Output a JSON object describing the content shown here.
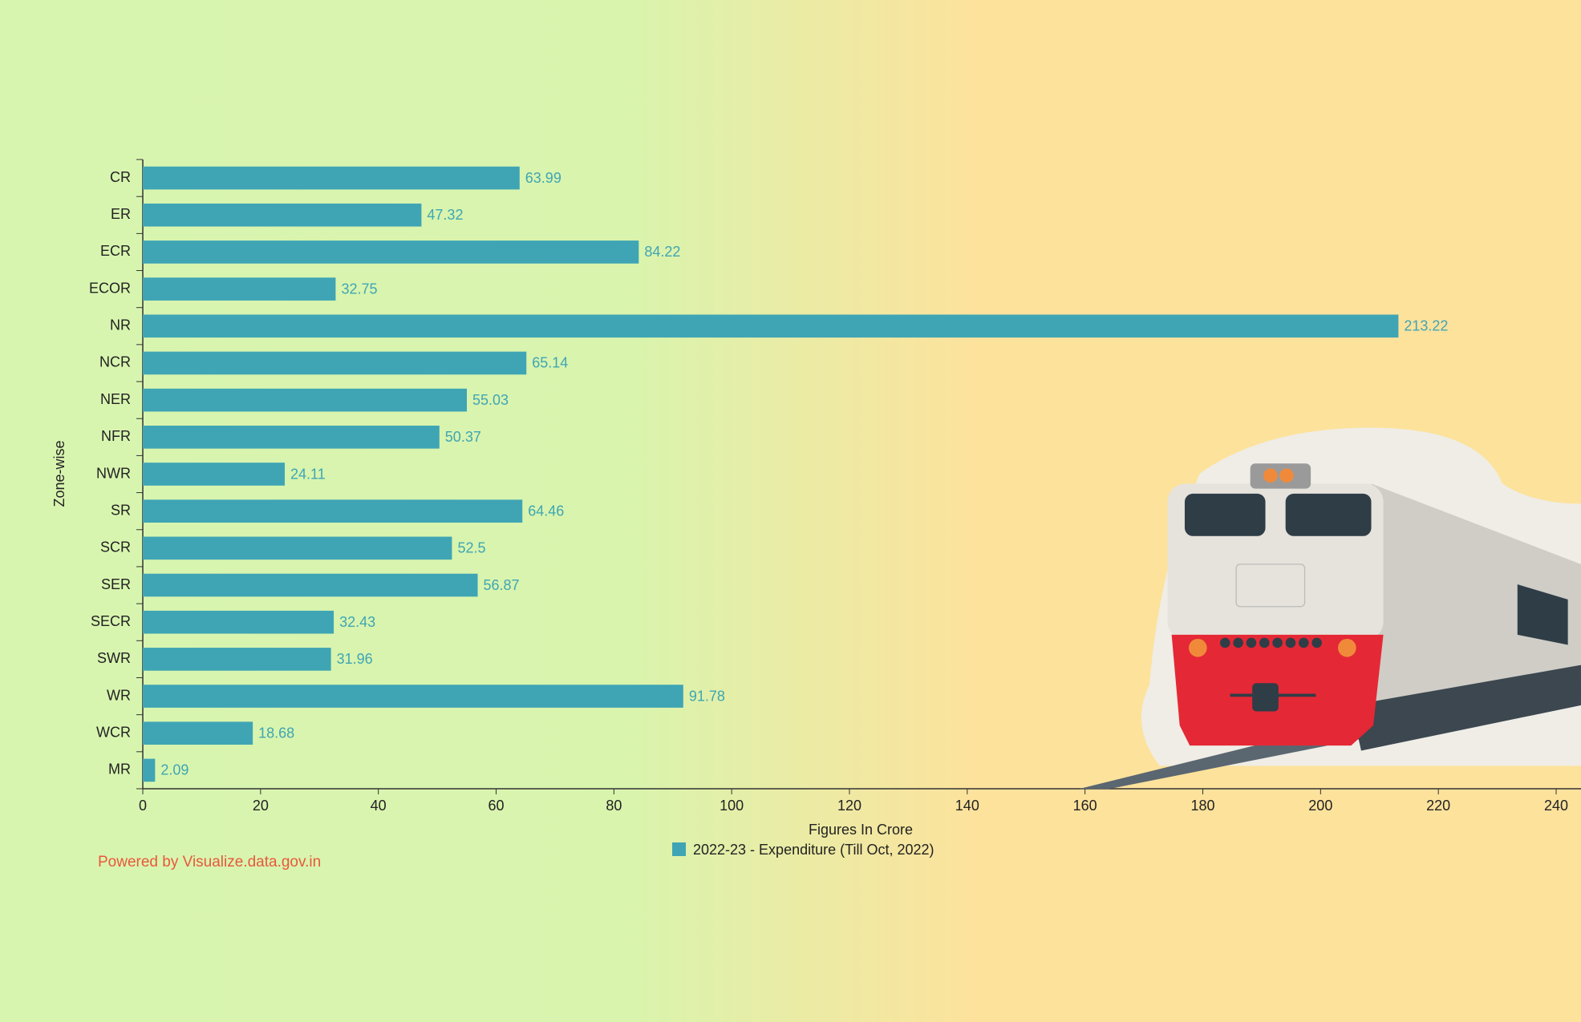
{
  "chart_data": {
    "type": "bar",
    "orientation": "horizontal",
    "y_label": "Zone-wise",
    "x_label": "Figures In Crore",
    "categories": [
      "CR",
      "ER",
      "ECR",
      "ECOR",
      "NR",
      "NCR",
      "NER",
      "NFR",
      "NWR",
      "SR",
      "SCR",
      "SER",
      "SECR",
      "SWR",
      "WR",
      "WCR",
      "MR"
    ],
    "series": [
      {
        "name": "2022-23 - Expenditure (Till Oct, 2022)",
        "color": "#3fa5b5",
        "values": [
          63.99,
          47.32,
          84.22,
          32.75,
          213.22,
          65.14,
          55.03,
          50.37,
          24.11,
          64.46,
          52.5,
          56.87,
          32.43,
          31.96,
          91.78,
          18.68,
          2.09
        ]
      }
    ],
    "xlim": [
      0,
      240
    ],
    "xticks": [
      0,
      20,
      40,
      60,
      80,
      100,
      120,
      140,
      160,
      180,
      200,
      220,
      240
    ],
    "credit": "Powered by Visualize.data.gov.in"
  }
}
